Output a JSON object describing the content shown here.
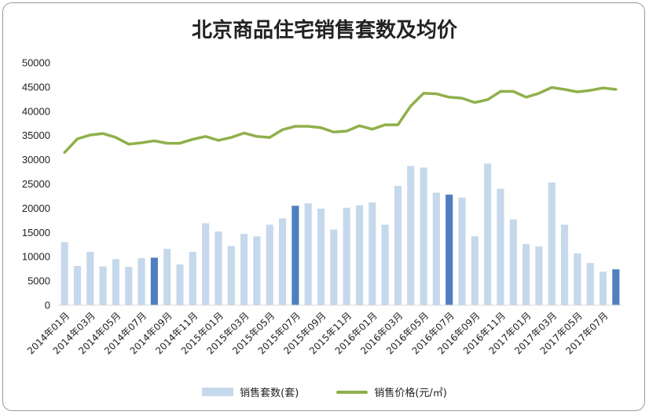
{
  "chart_data": {
    "type": "bar",
    "title": "北京商品住宅销售套数及均价",
    "ylim": [
      0,
      50000
    ],
    "yticks": [
      0,
      5000,
      10000,
      15000,
      20000,
      25000,
      30000,
      35000,
      40000,
      45000,
      50000
    ],
    "grid": false,
    "legend_position": "bottom",
    "x": [
      "2014年01月",
      "2014年02月",
      "2014年03月",
      "2014年04月",
      "2014年05月",
      "2014年06月",
      "2014年07月",
      "2014年08月",
      "2014年09月",
      "2014年10月",
      "2014年11月",
      "2014年12月",
      "2015年01月",
      "2015年02月",
      "2015年03月",
      "2015年04月",
      "2015年05月",
      "2015年06月",
      "2015年07月",
      "2015年08月",
      "2015年09月",
      "2015年10月",
      "2015年11月",
      "2015年12月",
      "2016年01月",
      "2016年02月",
      "2016年03月",
      "2016年04月",
      "2016年05月",
      "2016年06月",
      "2016年07月",
      "2016年08月",
      "2016年09月",
      "2016年10月",
      "2016年11月",
      "2016年12月",
      "2017年01月",
      "2017年02月",
      "2017年03月",
      "2017年04月",
      "2017年05月",
      "2017年06月",
      "2017年07月",
      "2017年08月"
    ],
    "x_tick_labels": [
      "2014年01月",
      "2014年03月",
      "2014年05月",
      "2014年07月",
      "2014年09月",
      "2014年11月",
      "2015年01月",
      "2015年03月",
      "2015年05月",
      "2015年07月",
      "2015年09月",
      "2015年11月",
      "2016年01月",
      "2016年03月",
      "2016年05月",
      "2016年07月",
      "2016年09月",
      "2016年11月",
      "2017年01月",
      "2017年03月",
      "2017年05月",
      "2017年07月"
    ],
    "series": [
      {
        "name": "销售套数(套)",
        "type": "bar",
        "color": "#c6d8ec",
        "highlight_color": "#4f7fbf",
        "highlight_indices": [
          7,
          18,
          30,
          43
        ],
        "values": [
          13000,
          8100,
          11000,
          8000,
          9500,
          7900,
          9700,
          9800,
          11600,
          8400,
          11000,
          16900,
          15200,
          12200,
          14700,
          14200,
          16600,
          17900,
          20500,
          21000,
          19900,
          15600,
          20100,
          20600,
          21200,
          16600,
          24600,
          28700,
          28400,
          23200,
          22800,
          22200,
          14200,
          29200,
          24000,
          17700,
          12600,
          12100,
          25300,
          16600,
          10700,
          8700,
          6900,
          7400
        ]
      },
      {
        "name": "销售价格(元/㎡)",
        "type": "line",
        "color": "#8fb04a",
        "values": [
          31500,
          34300,
          35100,
          35400,
          34600,
          33200,
          33500,
          33900,
          33400,
          33400,
          34200,
          34800,
          34000,
          34600,
          35500,
          34800,
          34600,
          36200,
          36900,
          36900,
          36600,
          35700,
          35900,
          37000,
          36300,
          37200,
          37200,
          41100,
          43700,
          43600,
          42900,
          42700,
          41800,
          42400,
          44100,
          44100,
          42900,
          43700,
          44900,
          44500,
          44000,
          44300,
          44800,
          44500
        ]
      }
    ]
  }
}
